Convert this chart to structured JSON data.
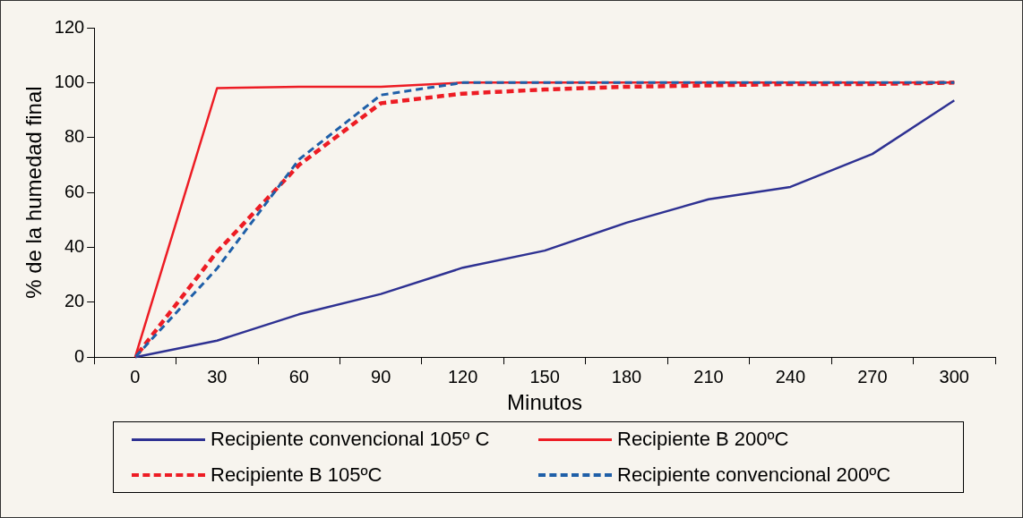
{
  "chart_data": {
    "type": "line",
    "xlabel": "Minutos",
    "ylabel": "% de la humedad final",
    "categories": [
      "0",
      "30",
      "60",
      "90",
      "120",
      "150",
      "180",
      "210",
      "240",
      "270",
      "300"
    ],
    "ylim": [
      0,
      120
    ],
    "yticks": [
      0,
      20,
      40,
      60,
      80,
      100,
      120
    ],
    "grid": false,
    "legend": "bottom",
    "marker": "none",
    "series": [
      {
        "name": "Recipiente convencional 105º C",
        "color": "#2e3192",
        "line_style": "solid",
        "values": [
          0,
          6,
          15.6,
          23,
          32.6,
          38.8,
          49,
          57.5,
          62,
          74,
          93.5
        ]
      },
      {
        "name": "Recipiente B 200ºC",
        "color": "#ed1c24",
        "line_style": "solid",
        "values": [
          0,
          98,
          98.5,
          98.5,
          100,
          100,
          100,
          100,
          100,
          100,
          100
        ]
      },
      {
        "name": "Recipiente B 105ºC",
        "color": "#ed1c24",
        "line_style": "dashed",
        "values": [
          0,
          38.4,
          70,
          92.5,
          96,
          97.5,
          98.5,
          99,
          99.5,
          99.5,
          100
        ]
      },
      {
        "name": "Recipiente convencional 200ºC",
        "color": "#1f5fa8",
        "line_style": "dashed",
        "values": [
          0,
          32.3,
          72,
          95.5,
          100,
          100,
          100,
          100,
          100,
          100,
          100
        ]
      }
    ]
  }
}
